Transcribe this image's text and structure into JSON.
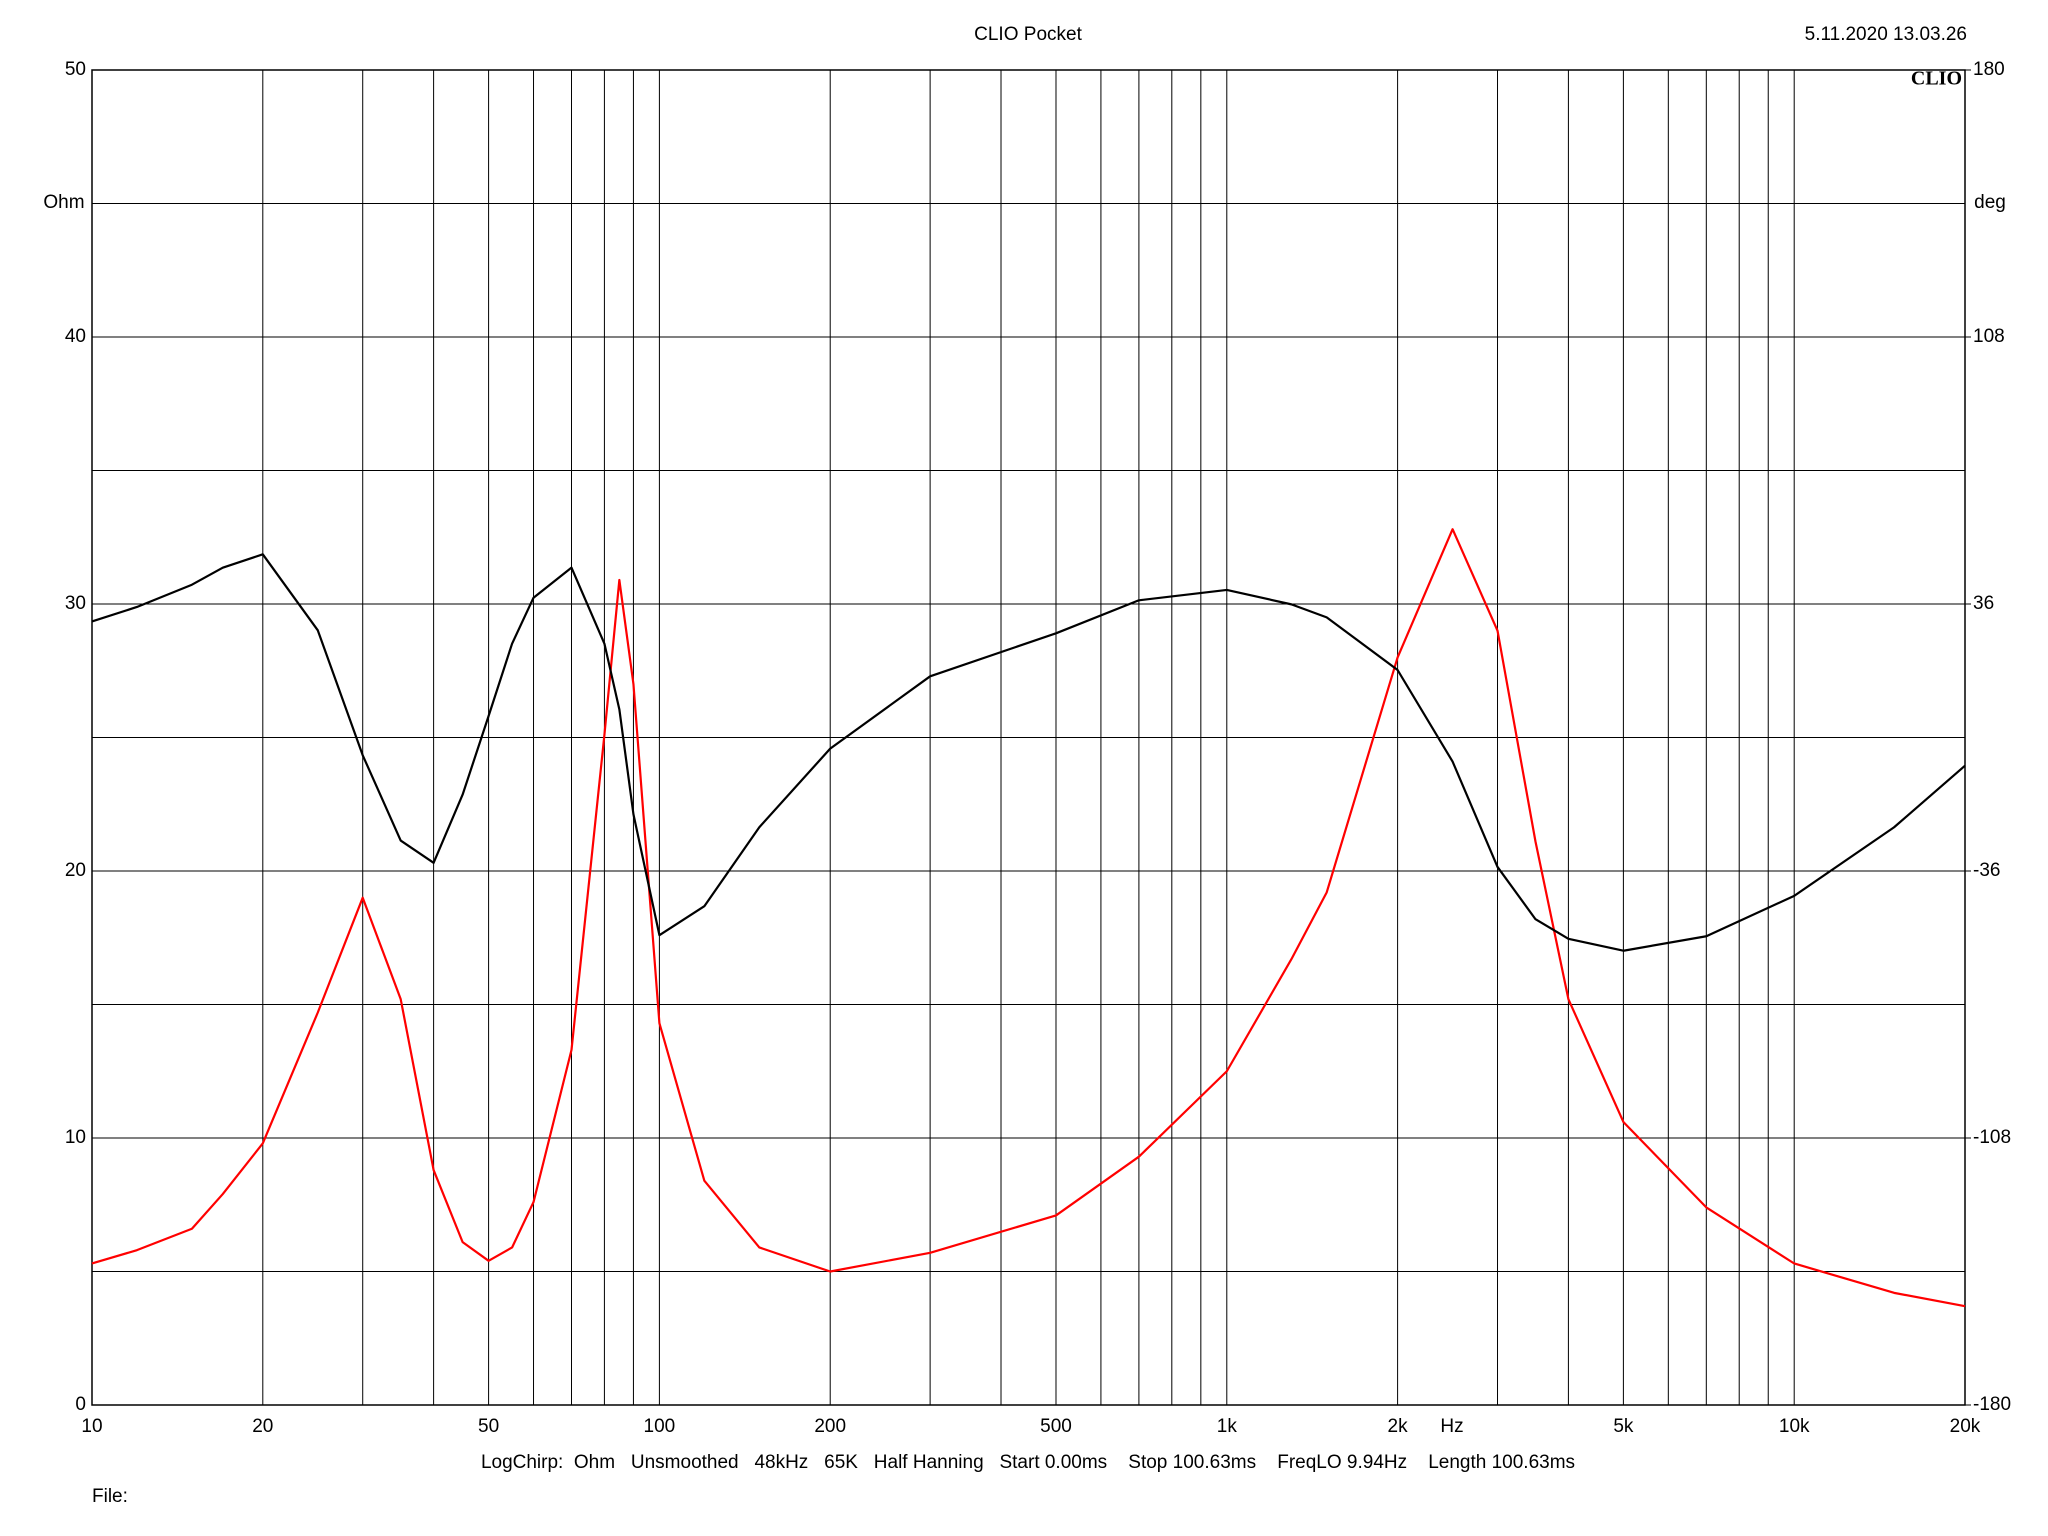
{
  "chart_data": {
    "type": "line",
    "title": "CLIO Pocket",
    "timestamp": "5.11.2020 13.03.26",
    "logo": "CLIO",
    "y_label": "Ohm",
    "y2_label": "deg",
    "x_label": "Hz",
    "footer": "LogChirp:  Ohm   Unsmoothed   48kHz   65K   Half Hanning   Start 0.00ms    Stop 100.63ms    FreqLO 9.94Hz    Length 100.63ms",
    "file_label": "File:",
    "xscale": "log",
    "xlim": [
      10,
      20000
    ],
    "xticks": [
      10,
      20,
      50,
      100,
      200,
      500,
      {
        "value": 1000,
        "label": "1k"
      },
      {
        "value": 2000,
        "label": "2k"
      },
      {
        "value": 5000,
        "label": "5k"
      },
      {
        "value": 10000,
        "label": "10k"
      },
      {
        "value": 20000,
        "label": "20k"
      }
    ],
    "xminor": [
      30,
      40,
      60,
      70,
      80,
      90,
      300,
      400,
      600,
      700,
      800,
      900,
      3000,
      4000,
      6000,
      7000,
      8000,
      9000
    ],
    "ylim": [
      0,
      50
    ],
    "yticks": [
      0,
      10,
      20,
      30,
      40,
      50
    ],
    "yminor": [
      5,
      15,
      25,
      35,
      45
    ],
    "y2lim": [
      -180,
      180
    ],
    "y2ticks": [
      -180,
      -108,
      -36,
      36,
      108,
      180
    ],
    "grid": true,
    "x": [
      10,
      12,
      15,
      17,
      20,
      25,
      30,
      35,
      40,
      45,
      50,
      55,
      60,
      70,
      80,
      85,
      90,
      100,
      120,
      150,
      200,
      300,
      500,
      700,
      1000,
      1300,
      1500,
      2000,
      2500,
      3000,
      3500,
      4000,
      5000,
      7000,
      10000,
      15000,
      20000
    ],
    "series": [
      {
        "color": "#ff0000",
        "values": [
          5.3,
          5.8,
          6.6,
          7.9,
          9.8,
          14.7,
          19.0,
          15.2,
          8.8,
          6.1,
          5.4,
          5.9,
          7.6,
          13.3,
          25.1,
          30.9,
          27.0,
          14.3,
          8.4,
          5.9,
          5.0,
          5.7,
          7.1,
          9.3,
          12.5,
          16.7,
          19.2,
          28.0,
          32.8,
          29.0,
          21.1,
          15.2,
          10.6,
          7.4,
          5.3,
          4.2,
          3.7
        ]
      },
      {
        "color": "#000000",
        "axis": "y2",
        "values": [
          31.3,
          35.2,
          41.2,
          45.8,
          49.4,
          28.9,
          -4.8,
          -27.8,
          -33.8,
          -15.4,
          5.8,
          25.3,
          37.7,
          45.8,
          25.3,
          7.6,
          -20.7,
          -53.3,
          -45.5,
          -24.2,
          -3.0,
          16.5,
          28.1,
          37.0,
          39.8,
          35.9,
          32.4,
          18.2,
          -6.5,
          -34.9,
          -49.0,
          -54.3,
          -57.5,
          -53.6,
          -42.7,
          -24.2,
          -7.6
        ]
      }
    ]
  }
}
